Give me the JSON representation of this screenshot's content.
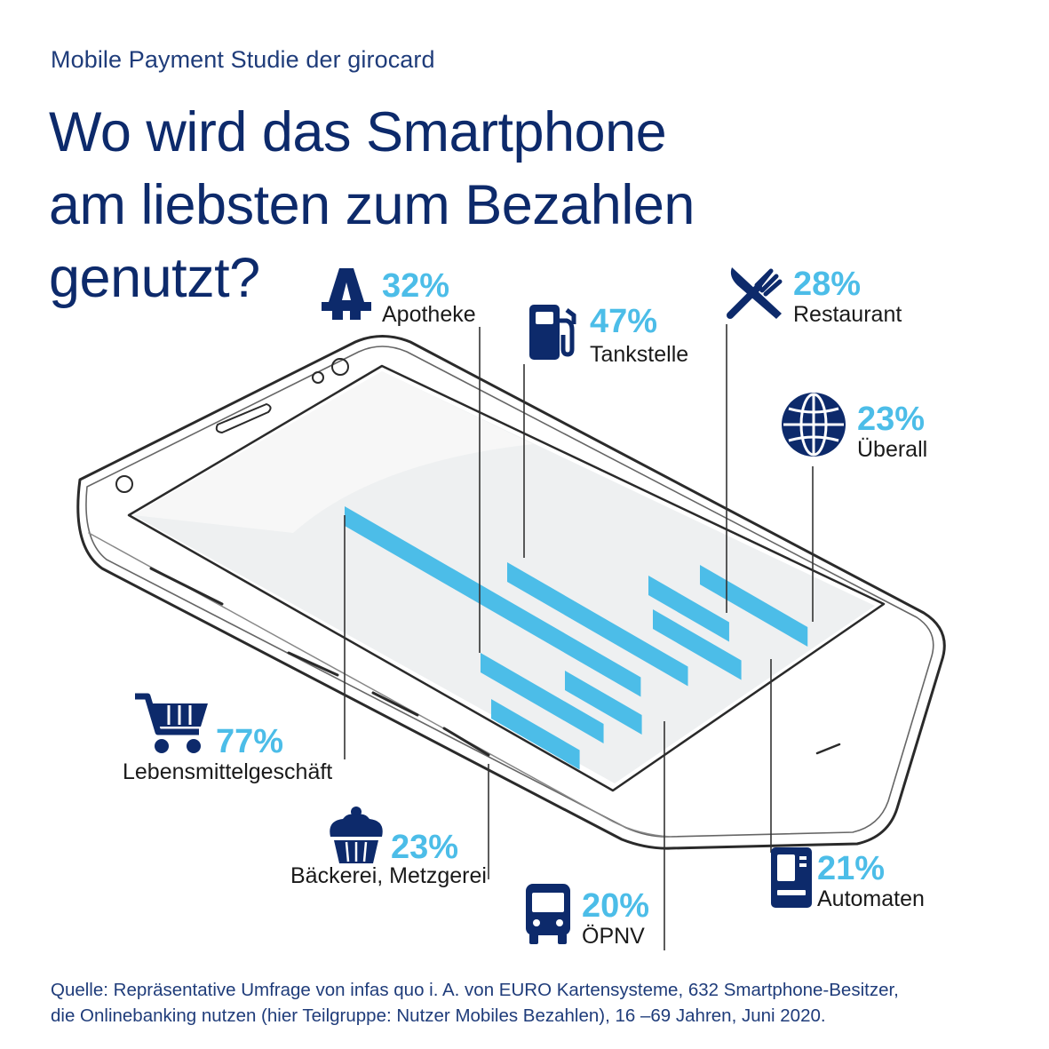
{
  "header": {
    "subtitle": "Mobile Payment Studie der girocard",
    "title_lines": [
      "Wo wird das Smartphone",
      "am liebsten zum Bezahlen",
      "genutzt?"
    ]
  },
  "colors": {
    "navy": "#0d2a6b",
    "accent": "#4cbde8"
  },
  "chart_data": {
    "type": "bar",
    "title": "Wo wird das Smartphone am liebsten zum Bezahlen genutzt?",
    "unit": "%",
    "categories": [
      "Lebensmittelgeschäft",
      "Apotheke",
      "Tankstelle",
      "Bäckerei, Metzgerei",
      "ÖPNV",
      "Restaurant",
      "Automaten",
      "Überall"
    ],
    "values": [
      77,
      32,
      47,
      23,
      20,
      28,
      21,
      23
    ],
    "labels": [
      "77%",
      "32%",
      "47%",
      "23%",
      "20%",
      "28%",
      "21%",
      "23%"
    ],
    "icons": [
      "shopping-cart-icon",
      "pharmacy-icon",
      "fuel-pump-icon",
      "cupcake-icon",
      "bus-icon",
      "fork-knife-icon",
      "vending-machine-icon",
      "globe-icon"
    ]
  },
  "footer": {
    "source_lines": [
      "Quelle: Repräsentative Umfrage von infas quo i. A. von EURO Kartensysteme, 632 Smartphone-Besitzer,",
      "die Onlinebanking nutzen (hier Teilgruppe: Nutzer Mobiles Bezahlen), 16 –69 Jahren, Juni 2020."
    ]
  }
}
